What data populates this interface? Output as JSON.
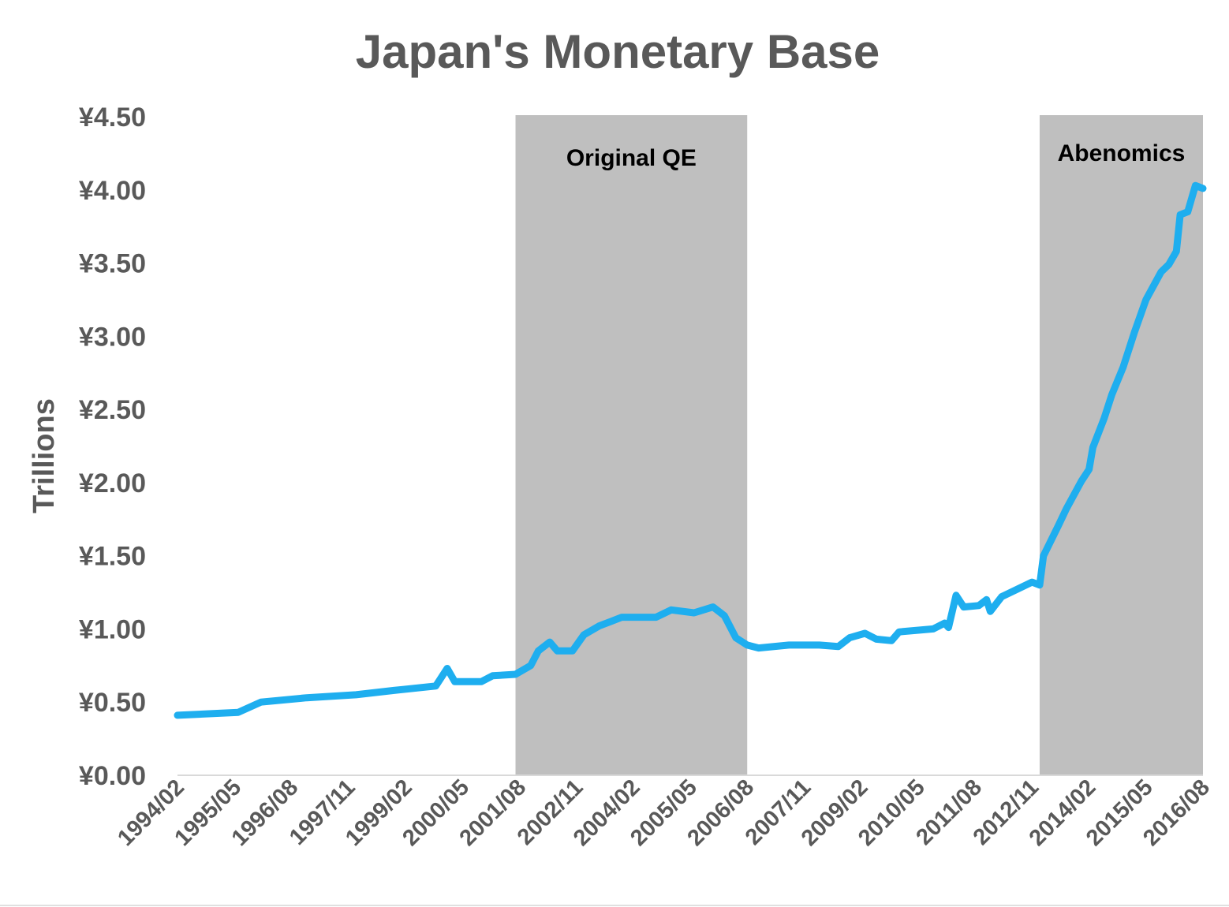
{
  "chart_data": {
    "type": "line",
    "title": "Japan's Monetary Base",
    "xlabel": "",
    "ylabel": "Trillions",
    "ylim": [
      0,
      4.5
    ],
    "y_ticks": [
      "¥0.00",
      "¥0.50",
      "¥1.00",
      "¥1.50",
      "¥2.00",
      "¥2.50",
      "¥3.00",
      "¥3.50",
      "¥4.00",
      "¥4.50"
    ],
    "y_tick_values": [
      0,
      0.5,
      1,
      1.5,
      2,
      2.5,
      3,
      3.5,
      4,
      4.5
    ],
    "x_range": [
      "1994/02",
      "2016/08"
    ],
    "x_ticks": [
      "1994/02",
      "1995/05",
      "1996/08",
      "1997/11",
      "1999/02",
      "2000/05",
      "2001/08",
      "2002/11",
      "2004/02",
      "2005/05",
      "2006/08",
      "2007/11",
      "2009/02",
      "2010/05",
      "2011/08",
      "2012/11",
      "2014/02",
      "2015/05",
      "2016/08"
    ],
    "grid": false,
    "shaded_periods": [
      {
        "label": "Original QE",
        "start": "2001/07",
        "end": "2006/08",
        "color": "#BFBFBF"
      },
      {
        "label": "Abenomics",
        "start": "2013/01",
        "end": "2016/08",
        "color": "#BFBFBF"
      }
    ],
    "series": [
      {
        "name": "Monetary Base",
        "color": "#1EAEEF",
        "x": [
          "1994/02",
          "1995/06",
          "1995/12",
          "1996/12",
          "1998/01",
          "1998/11",
          "1999/10",
          "2000/01",
          "2000/03",
          "2000/10",
          "2001/01",
          "2001/07",
          "2001/11",
          "2002/01",
          "2002/04",
          "2002/06",
          "2002/10",
          "2003/01",
          "2003/05",
          "2003/08",
          "2003/11",
          "2004/08",
          "2004/12",
          "2005/06",
          "2005/11",
          "2006/02",
          "2006/05",
          "2006/08",
          "2006/11",
          "2007/07",
          "2008/03",
          "2008/08",
          "2008/11",
          "2009/03",
          "2009/06",
          "2009/10",
          "2009/12",
          "2010/09",
          "2010/12",
          "2011/01",
          "2011/03",
          "2011/05",
          "2011/09",
          "2011/11",
          "2011/12",
          "2012/03",
          "2012/07",
          "2012/11",
          "2013/01",
          "2013/02",
          "2013/06",
          "2013/08",
          "2013/12",
          "2014/02",
          "2014/03",
          "2014/06",
          "2014/08",
          "2014/11",
          "2015/02",
          "2015/05",
          "2015/09",
          "2015/11",
          "2016/01",
          "2016/02",
          "2016/04",
          "2016/06",
          "2016/08"
        ],
        "values": [
          0.41,
          0.43,
          0.5,
          0.53,
          0.55,
          0.58,
          0.61,
          0.73,
          0.64,
          0.64,
          0.68,
          0.69,
          0.75,
          0.85,
          0.91,
          0.85,
          0.85,
          0.96,
          1.02,
          1.05,
          1.08,
          1.08,
          1.13,
          1.11,
          1.15,
          1.09,
          0.94,
          0.89,
          0.87,
          0.89,
          0.89,
          0.88,
          0.94,
          0.97,
          0.93,
          0.92,
          0.98,
          1.0,
          1.04,
          1.01,
          1.23,
          1.15,
          1.16,
          1.2,
          1.12,
          1.22,
          1.27,
          1.32,
          1.3,
          1.5,
          1.71,
          1.82,
          2.01,
          2.09,
          2.24,
          2.44,
          2.6,
          2.79,
          3.03,
          3.25,
          3.44,
          3.49,
          3.58,
          3.83,
          3.85,
          4.03,
          4.01
        ]
      }
    ]
  }
}
